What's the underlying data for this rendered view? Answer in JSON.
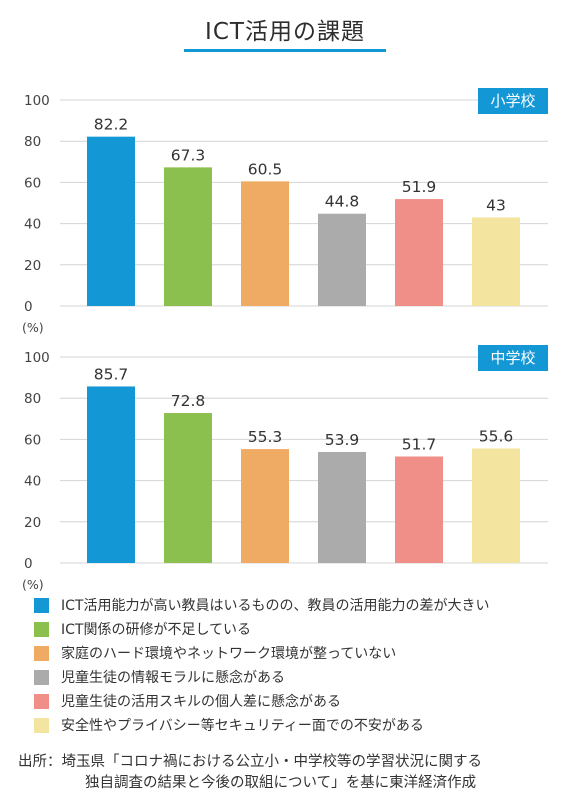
{
  "title": "ICT活用の課題",
  "colors": {
    "accent": "#1497d5",
    "series": [
      "#1497d5",
      "#8bc04f",
      "#efaa64",
      "#ababab",
      "#f08f88",
      "#f3e49f"
    ]
  },
  "legend": [
    "ICT活用能力が高い教員はいるものの、教員の活用能力の差が大きい",
    "ICT関係の研修が不足している",
    "家庭のハード環境やネットワーク環境が整っていない",
    "児童生徒の情報モラルに懸念がある",
    "児童生徒の活用スキルの個人差に懸念がある",
    "安全性やプライバシー等セキュリティー面での不安がある"
  ],
  "source": {
    "line1": "出所：埼玉県「コロナ禍における公立小・中学校等の学習状況に関する",
    "line2": "独自調査の結果と今後の取組について」を基に東洋経済作成"
  },
  "chart_data": [
    {
      "type": "bar",
      "badge": "小学校",
      "unit": "(%)",
      "ylim": [
        0,
        100
      ],
      "yticks": [
        0,
        20,
        40,
        60,
        80,
        100
      ],
      "grid": true,
      "values": [
        82.2,
        67.3,
        60.5,
        44.8,
        51.9,
        43
      ],
      "value_labels": [
        "82.2",
        "67.3",
        "60.5",
        "44.8",
        "51.9",
        "43"
      ]
    },
    {
      "type": "bar",
      "badge": "中学校",
      "unit": "(%)",
      "ylim": [
        0,
        100
      ],
      "yticks": [
        0,
        20,
        40,
        60,
        80,
        100
      ],
      "grid": true,
      "values": [
        85.7,
        72.8,
        55.3,
        53.9,
        51.7,
        55.6
      ],
      "value_labels": [
        "85.7",
        "72.8",
        "55.3",
        "53.9",
        "51.7",
        "55.6"
      ]
    }
  ]
}
